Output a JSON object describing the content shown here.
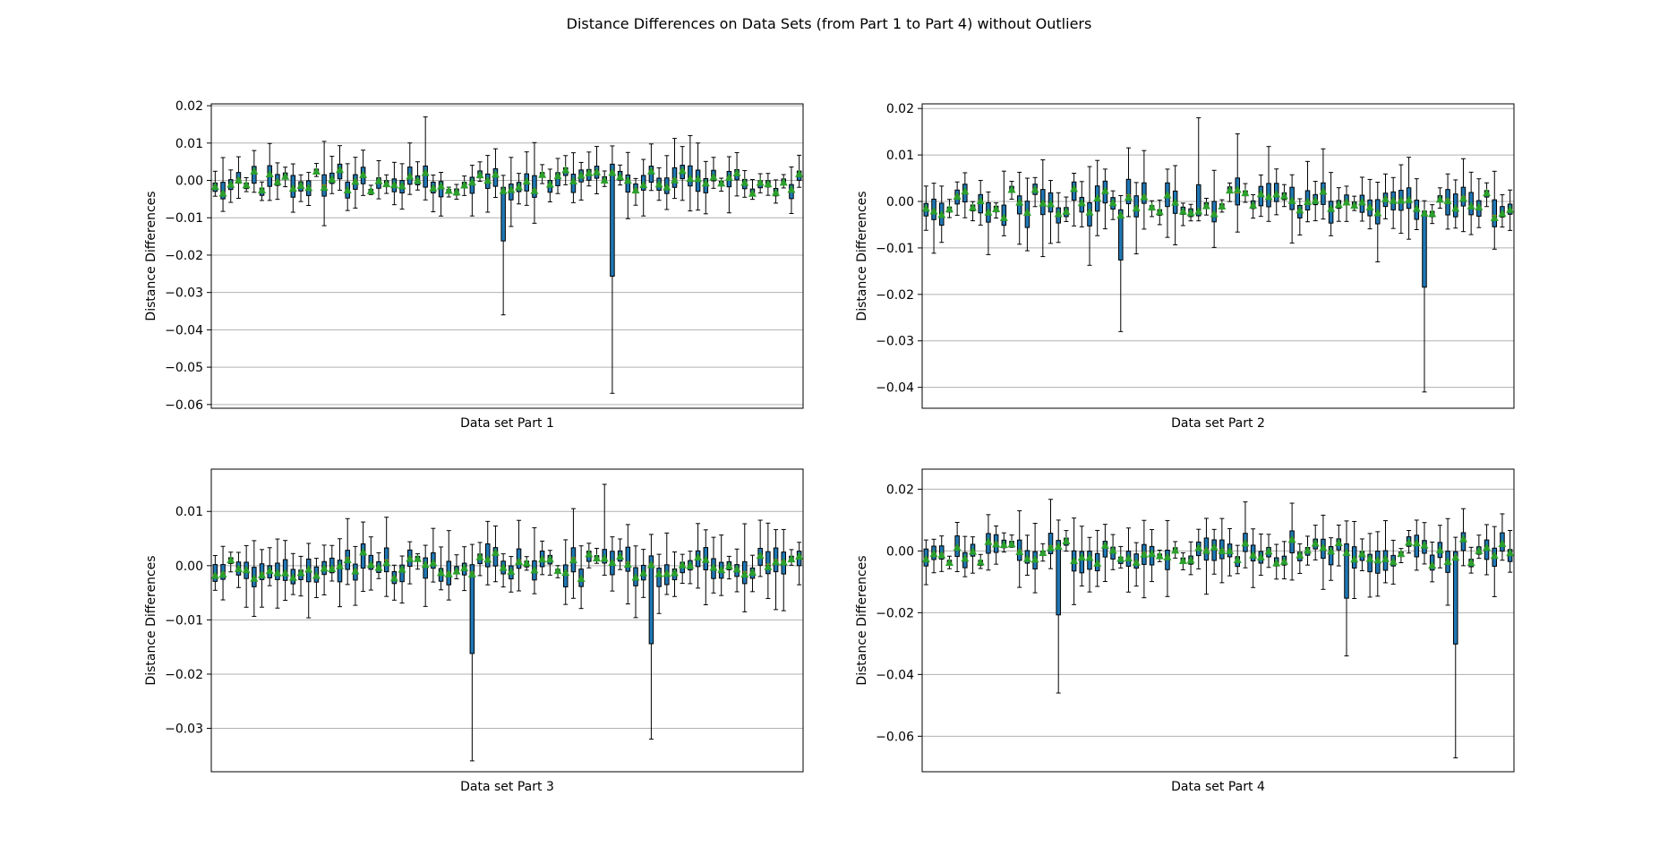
{
  "figure": {
    "title": "Distance Differences on Data Sets (from Part 1 to Part 4) without Outliers"
  },
  "colors": {
    "box_fill": "#1f77b4",
    "median": "#ff7f0e",
    "mean_marker": "#2ca02c",
    "grid": "#b0b0b0",
    "axis": "#000000"
  },
  "chart_data": [
    {
      "type": "box",
      "panel": "top-left",
      "xlabel": "Data set Part 1",
      "ylabel": "Distance Differences",
      "ylim": [
        -0.061,
        0.0205
      ],
      "yticks": [
        0.02,
        0.01,
        0.0,
        -0.01,
        -0.02,
        -0.03,
        -0.04,
        -0.05,
        -0.06
      ],
      "ytick_labels": [
        "0.02",
        "0.01",
        "0.00",
        "−0.01",
        "−0.02",
        "−0.03",
        "−0.04",
        "−0.05",
        "−0.06"
      ],
      "grid": "y",
      "box_count": 76,
      "extremes": {
        "min_whisker": -0.057,
        "max_whisker": 0.017
      }
    },
    {
      "type": "box",
      "panel": "top-right",
      "xlabel": "Data set Part 2",
      "ylabel": "Distance Differences",
      "ylim": [
        -0.0445,
        0.021
      ],
      "yticks": [
        0.02,
        0.01,
        0.0,
        -0.01,
        -0.02,
        -0.03,
        -0.04
      ],
      "ytick_labels": [
        "0.02",
        "0.01",
        "0.00",
        "−0.01",
        "−0.02",
        "−0.03",
        "−0.04"
      ],
      "grid": "y",
      "box_count": 76,
      "extremes": {
        "min_whisker": -0.041,
        "max_whisker": 0.018
      }
    },
    {
      "type": "box",
      "panel": "bottom-left",
      "xlabel": "Data set Part 3",
      "ylabel": "Distance Differences",
      "ylim": [
        -0.038,
        0.0178
      ],
      "yticks": [
        0.01,
        0.0,
        -0.01,
        -0.02,
        -0.03
      ],
      "ytick_labels": [
        "0.01",
        "0.00",
        "−0.01",
        "−0.02",
        "−0.03"
      ],
      "grid": "y",
      "box_count": 76,
      "extremes": {
        "min_whisker": -0.036,
        "max_whisker": 0.015
      }
    },
    {
      "type": "box",
      "panel": "bottom-right",
      "xlabel": "Data set Part 4",
      "ylabel": "Distance Differences",
      "ylim": [
        -0.0715,
        0.0265
      ],
      "yticks": [
        0.02,
        0.0,
        -0.02,
        -0.04,
        -0.06
      ],
      "ytick_labels": [
        "0.02",
        "0.00",
        "−0.02",
        "−0.04",
        "−0.06"
      ],
      "grid": "y",
      "box_count": 76,
      "extremes": {
        "min_whisker": -0.067,
        "max_whisker": 0.022
      }
    }
  ]
}
